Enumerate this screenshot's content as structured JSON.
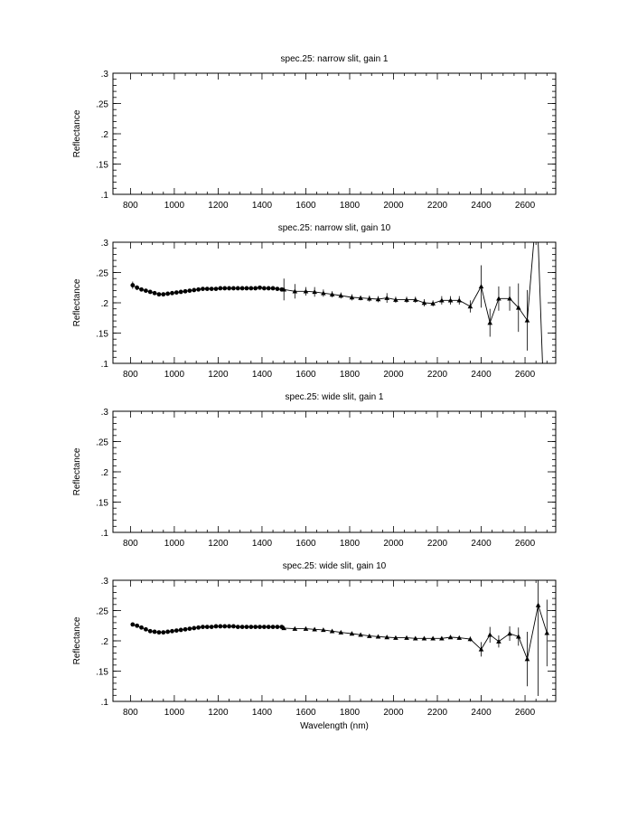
{
  "chart_data": [
    {
      "type": "line",
      "title": "spec.25: narrow slit, gain 1",
      "xlabel": "",
      "ylabel": "Reflectance",
      "xlim": [
        720,
        2740
      ],
      "ylim": [
        0.1,
        0.3
      ],
      "xticks": [
        800,
        1000,
        1200,
        1400,
        1600,
        1800,
        2000,
        2200,
        2400,
        2600
      ],
      "xtick_labels": [
        "800",
        "1000",
        "1200",
        "1400",
        "1600",
        "1800",
        "2000",
        "2200",
        "2400",
        "2600"
      ],
      "yticks": [
        0.1,
        0.15,
        0.2,
        0.25,
        0.3
      ],
      "ytick_labels": [
        ".1",
        ".15",
        ".2",
        ".25",
        ".3"
      ],
      "grid": false,
      "series": []
    },
    {
      "type": "line",
      "title": "spec.25: narrow slit, gain 10",
      "xlabel": "",
      "ylabel": "Reflectance",
      "xlim": [
        720,
        2740
      ],
      "ylim": [
        0.1,
        0.3
      ],
      "xticks": [
        800,
        1000,
        1200,
        1400,
        1600,
        1800,
        2000,
        2200,
        2400,
        2600
      ],
      "xtick_labels": [
        "800",
        "1000",
        "1200",
        "1400",
        "1600",
        "1800",
        "2000",
        "2200",
        "2400",
        "2600"
      ],
      "yticks": [
        0.1,
        0.15,
        0.2,
        0.25,
        0.3
      ],
      "ytick_labels": [
        ".1",
        ".15",
        ".2",
        ".25",
        ".3"
      ],
      "grid": false,
      "series": [
        {
          "marker": "circle",
          "x": [
            810,
            830,
            850,
            870,
            890,
            910,
            930,
            950,
            970,
            990,
            1010,
            1030,
            1050,
            1070,
            1090,
            1110,
            1130,
            1150,
            1170,
            1190,
            1210,
            1230,
            1250,
            1270,
            1290,
            1310,
            1330,
            1350,
            1370,
            1390,
            1410,
            1430,
            1450,
            1470,
            1490
          ],
          "y": [
            0.229,
            0.225,
            0.222,
            0.22,
            0.218,
            0.216,
            0.214,
            0.214,
            0.215,
            0.216,
            0.217,
            0.218,
            0.219,
            0.22,
            0.221,
            0.222,
            0.223,
            0.223,
            0.223,
            0.223,
            0.224,
            0.224,
            0.224,
            0.224,
            0.224,
            0.224,
            0.224,
            0.224,
            0.224,
            0.225,
            0.224,
            0.224,
            0.224,
            0.223,
            0.222
          ],
          "err": [
            0.006,
            0.004,
            0.003,
            0.003,
            0.002,
            0.002,
            0.002,
            0.002,
            0.002,
            0.002,
            0.002,
            0.002,
            0.002,
            0.002,
            0.002,
            0.002,
            0.002,
            0.002,
            0.002,
            0.002,
            0.002,
            0.002,
            0.002,
            0.002,
            0.002,
            0.002,
            0.002,
            0.002,
            0.002,
            0.002,
            0.002,
            0.002,
            0.002,
            0.002,
            0.002
          ]
        },
        {
          "marker": "triangle",
          "x": [
            1500,
            1550,
            1600,
            1640,
            1680,
            1720,
            1760,
            1810,
            1850,
            1890,
            1930,
            1970,
            2010,
            2060,
            2100,
            2140,
            2180,
            2220,
            2260,
            2300,
            2350,
            2400,
            2440,
            2480,
            2530,
            2570,
            2610
          ],
          "y": [
            0.222,
            0.219,
            0.219,
            0.218,
            0.216,
            0.214,
            0.212,
            0.209,
            0.208,
            0.207,
            0.206,
            0.208,
            0.205,
            0.205,
            0.205,
            0.2,
            0.199,
            0.204,
            0.204,
            0.204,
            0.194,
            0.227,
            0.167,
            0.207,
            0.207,
            0.192,
            0.171
          ],
          "err": [
            0.018,
            0.012,
            0.007,
            0.008,
            0.006,
            0.005,
            0.005,
            0.005,
            0.004,
            0.005,
            0.005,
            0.008,
            0.005,
            0.005,
            0.005,
            0.006,
            0.005,
            0.007,
            0.007,
            0.007,
            0.01,
            0.035,
            0.023,
            0.02,
            0.02,
            0.04,
            0.05
          ]
        },
        {
          "marker": "none",
          "x": [
            2610,
            2640,
            2660,
            2680,
            2700
          ],
          "y": [
            0.171,
            0.3,
            0.3,
            0.1,
            0.1
          ],
          "err": [
            0,
            0,
            0,
            0,
            0
          ]
        }
      ]
    },
    {
      "type": "line",
      "title": "spec.25: wide slit, gain 1",
      "xlabel": "",
      "ylabel": "Reflectance",
      "xlim": [
        720,
        2740
      ],
      "ylim": [
        0.1,
        0.3
      ],
      "xticks": [
        800,
        1000,
        1200,
        1400,
        1600,
        1800,
        2000,
        2200,
        2400,
        2600
      ],
      "xtick_labels": [
        "800",
        "1000",
        "1200",
        "1400",
        "1600",
        "1800",
        "2000",
        "2200",
        "2400",
        "2600"
      ],
      "yticks": [
        0.1,
        0.15,
        0.2,
        0.25,
        0.3
      ],
      "ytick_labels": [
        ".1",
        ".15",
        ".2",
        ".25",
        ".3"
      ],
      "grid": false,
      "series": []
    },
    {
      "type": "line",
      "title": "spec.25: wide slit, gain 10",
      "xlabel": "Wavelength (nm)",
      "ylabel": "Reflectance",
      "xlim": [
        720,
        2740
      ],
      "ylim": [
        0.1,
        0.3
      ],
      "xticks": [
        800,
        1000,
        1200,
        1400,
        1600,
        1800,
        2000,
        2200,
        2400,
        2600
      ],
      "xtick_labels": [
        "800",
        "1000",
        "1200",
        "1400",
        "1600",
        "1800",
        "2000",
        "2200",
        "2400",
        "2600"
      ],
      "yticks": [
        0.1,
        0.15,
        0.2,
        0.25,
        0.3
      ],
      "ytick_labels": [
        ".1",
        ".15",
        ".2",
        ".25",
        ".3"
      ],
      "grid": false,
      "series": [
        {
          "marker": "circle",
          "x": [
            810,
            830,
            850,
            870,
            890,
            910,
            930,
            950,
            970,
            990,
            1010,
            1030,
            1050,
            1070,
            1090,
            1110,
            1130,
            1150,
            1170,
            1190,
            1210,
            1230,
            1250,
            1270,
            1290,
            1310,
            1330,
            1350,
            1370,
            1390,
            1410,
            1430,
            1450,
            1470,
            1490
          ],
          "y": [
            0.227,
            0.225,
            0.222,
            0.219,
            0.216,
            0.215,
            0.214,
            0.214,
            0.215,
            0.216,
            0.217,
            0.218,
            0.219,
            0.22,
            0.221,
            0.222,
            0.223,
            0.223,
            0.223,
            0.224,
            0.224,
            0.224,
            0.224,
            0.224,
            0.223,
            0.223,
            0.223,
            0.223,
            0.223,
            0.223,
            0.223,
            0.223,
            0.223,
            0.223,
            0.223
          ],
          "err": [
            0.002,
            0.002,
            0.002,
            0.002,
            0.002,
            0.002,
            0.002,
            0.002,
            0.002,
            0.002,
            0.002,
            0.002,
            0.002,
            0.002,
            0.002,
            0.002,
            0.002,
            0.002,
            0.002,
            0.002,
            0.002,
            0.002,
            0.002,
            0.002,
            0.002,
            0.002,
            0.002,
            0.002,
            0.002,
            0.002,
            0.002,
            0.002,
            0.002,
            0.002,
            0.002
          ]
        },
        {
          "marker": "triangle",
          "x": [
            1500,
            1550,
            1600,
            1640,
            1680,
            1720,
            1760,
            1810,
            1850,
            1890,
            1930,
            1970,
            2010,
            2060,
            2100,
            2140,
            2180,
            2220,
            2260,
            2300,
            2350,
            2400,
            2440,
            2480,
            2530,
            2570,
            2610,
            2660,
            2700
          ],
          "y": [
            0.221,
            0.22,
            0.22,
            0.219,
            0.218,
            0.216,
            0.214,
            0.212,
            0.21,
            0.208,
            0.207,
            0.206,
            0.205,
            0.205,
            0.204,
            0.204,
            0.204,
            0.204,
            0.206,
            0.205,
            0.203,
            0.186,
            0.21,
            0.199,
            0.212,
            0.207,
            0.17,
            0.259,
            0.213
          ],
          "err": [
            0.002,
            0.002,
            0.002,
            0.002,
            0.002,
            0.002,
            0.002,
            0.002,
            0.002,
            0.002,
            0.002,
            0.002,
            0.002,
            0.002,
            0.002,
            0.002,
            0.002,
            0.003,
            0.003,
            0.003,
            0.004,
            0.012,
            0.013,
            0.01,
            0.012,
            0.015,
            0.045,
            0.15,
            0.055
          ]
        }
      ]
    }
  ]
}
